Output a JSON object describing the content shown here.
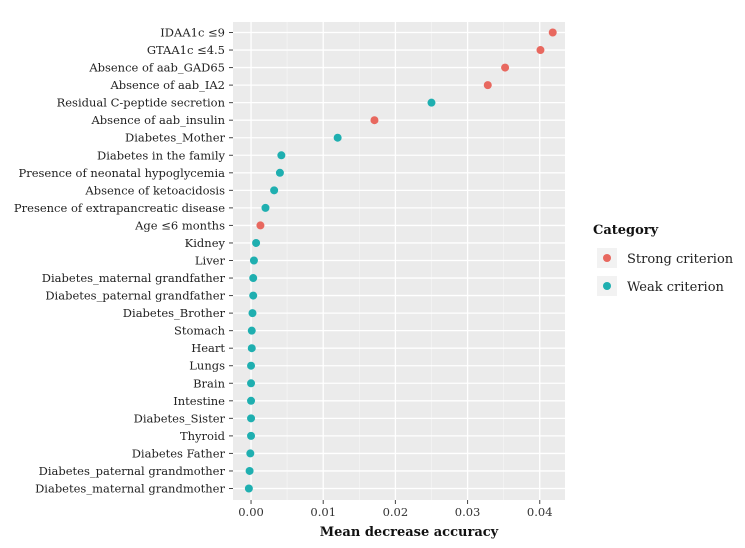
{
  "chart_data": {
    "type": "scatter",
    "xlabel": "Mean decrease accuracy",
    "ylabel": "",
    "xlim": [
      -0.0025,
      0.0435
    ],
    "x_ticks": [
      "0.00",
      "0.01",
      "0.02",
      "0.03",
      "0.04"
    ],
    "x_tick_values": [
      0,
      0.01,
      0.02,
      0.03,
      0.04
    ],
    "grid": true,
    "legend": {
      "title": "Category",
      "position": "right"
    },
    "series": [
      {
        "name": "Strong criterion",
        "color": "#e8685f"
      },
      {
        "name": "Weak criterion",
        "color": "#1fafb0"
      }
    ],
    "points": [
      {
        "label": "IDAA1c ≤9",
        "x": 0.0418,
        "category": "Strong criterion"
      },
      {
        "label": "GTAA1c ≤4.5",
        "x": 0.0401,
        "category": "Strong criterion"
      },
      {
        "label": "Absence of aab_GAD65",
        "x": 0.0352,
        "category": "Strong criterion"
      },
      {
        "label": "Absence of aab_IA2",
        "x": 0.0328,
        "category": "Strong criterion"
      },
      {
        "label": "Residual C-peptide secretion",
        "x": 0.025,
        "category": "Weak criterion"
      },
      {
        "label": "Absence of aab_insulin",
        "x": 0.0171,
        "category": "Strong criterion"
      },
      {
        "label": "Diabetes_Mother",
        "x": 0.012,
        "category": "Weak criterion"
      },
      {
        "label": "Diabetes in the family",
        "x": 0.0042,
        "category": "Weak criterion"
      },
      {
        "label": "Presence of neonatal hypoglycemia",
        "x": 0.004,
        "category": "Weak criterion"
      },
      {
        "label": "Absence of ketoacidosis",
        "x": 0.0032,
        "category": "Weak criterion"
      },
      {
        "label": "Presence of extrapancreatic disease",
        "x": 0.002,
        "category": "Weak criterion"
      },
      {
        "label": "Age ≤6 months",
        "x": 0.0013,
        "category": "Strong criterion"
      },
      {
        "label": "Kidney",
        "x": 0.0007,
        "category": "Weak criterion"
      },
      {
        "label": "Liver",
        "x": 0.0004,
        "category": "Weak criterion"
      },
      {
        "label": "Diabetes_maternal grandfather",
        "x": 0.0003,
        "category": "Weak criterion"
      },
      {
        "label": "Diabetes_paternal grandfather",
        "x": 0.0003,
        "category": "Weak criterion"
      },
      {
        "label": "Diabetes_Brother",
        "x": 0.0002,
        "category": "Weak criterion"
      },
      {
        "label": "Stomach",
        "x": 0.0001,
        "category": "Weak criterion"
      },
      {
        "label": "Heart",
        "x": 0.0001,
        "category": "Weak criterion"
      },
      {
        "label": "Lungs",
        "x": 0.0,
        "category": "Weak criterion"
      },
      {
        "label": "Brain",
        "x": 0.0,
        "category": "Weak criterion"
      },
      {
        "label": "Intestine",
        "x": 0.0,
        "category": "Weak criterion"
      },
      {
        "label": "Diabetes_Sister",
        "x": 0.0,
        "category": "Weak criterion"
      },
      {
        "label": "Thyroid",
        "x": 0.0,
        "category": "Weak criterion"
      },
      {
        "label": "Diabetes Father",
        "x": -0.0001,
        "category": "Weak criterion"
      },
      {
        "label": "Diabetes_paternal grandmother",
        "x": -0.0002,
        "category": "Weak criterion"
      },
      {
        "label": "Diabetes_maternal grandmother",
        "x": -0.0003,
        "category": "Weak criterion"
      }
    ]
  }
}
